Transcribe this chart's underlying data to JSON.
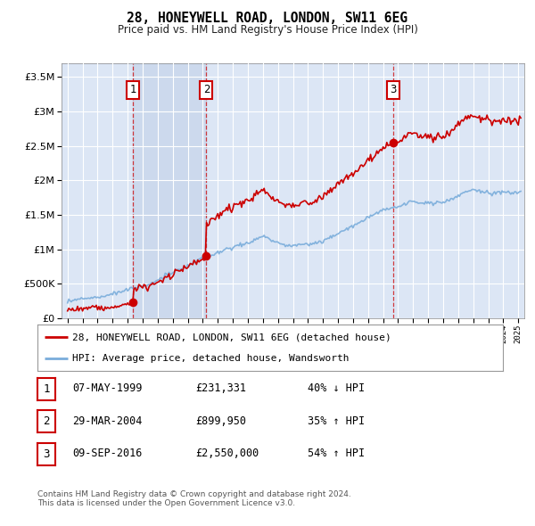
{
  "title": "28, HONEYWELL ROAD, LONDON, SW11 6EG",
  "subtitle": "Price paid vs. HM Land Registry's House Price Index (HPI)",
  "property_label": "28, HONEYWELL ROAD, LONDON, SW11 6EG (detached house)",
  "hpi_label": "HPI: Average price, detached house, Wandsworth",
  "sale_points": [
    {
      "num": 1,
      "date": "07-MAY-1999",
      "price": 231331,
      "note": "40% ↓ HPI",
      "year": 1999.37
    },
    {
      "num": 2,
      "date": "29-MAR-2004",
      "price": 899950,
      "note": "35% ↑ HPI",
      "year": 2004.24
    },
    {
      "num": 3,
      "date": "09-SEP-2016",
      "price": 2550000,
      "note": "54% ↑ HPI",
      "year": 2016.69
    }
  ],
  "footnote1": "Contains HM Land Registry data © Crown copyright and database right 2024.",
  "footnote2": "This data is licensed under the Open Government Licence v3.0.",
  "plot_bg": "#dce6f5",
  "grid_color": "#ffffff",
  "red_color": "#cc0000",
  "blue_color": "#7aaddb",
  "shade_color": "#cad7ec",
  "ylim_max": 3700000,
  "xlim_min": 1994.6,
  "xlim_max": 2025.4
}
